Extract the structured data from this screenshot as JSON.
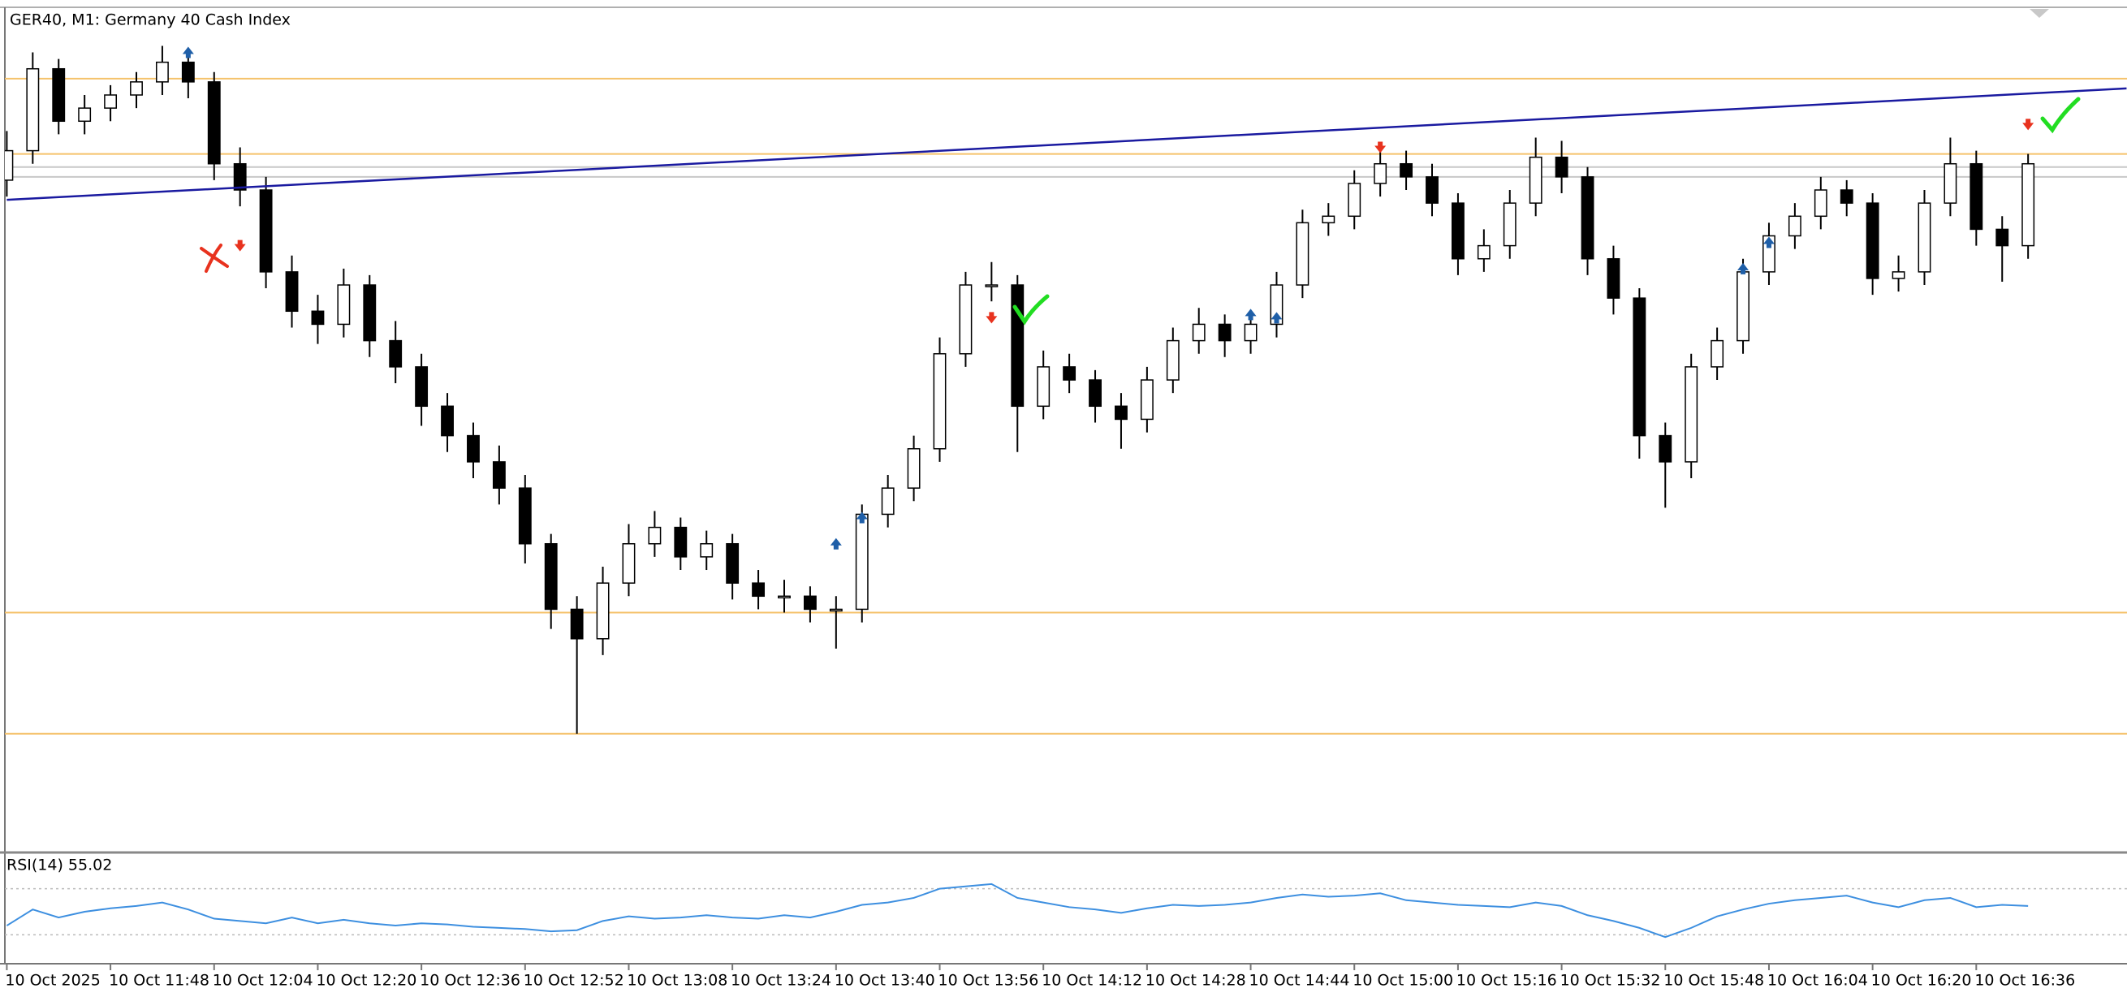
{
  "chart_data": {
    "type": "candlestick",
    "title": "GER40, M1:  Germany 40 Cash Index",
    "categories": [
      "10 Oct 2025",
      null,
      null,
      null,
      "10 Oct 11:48",
      null,
      null,
      null,
      "10 Oct 12:04",
      null,
      null,
      null,
      "10 Oct 12:20",
      null,
      null,
      null,
      "10 Oct 12:36",
      null,
      null,
      null,
      "10 Oct 12:52",
      null,
      null,
      null,
      "10 Oct 13:08",
      null,
      null,
      null,
      "10 Oct 13:24",
      null,
      null,
      null,
      "10 Oct 13:40",
      null,
      null,
      null,
      "10 Oct 13:56",
      null,
      null,
      null,
      "10 Oct 14:12",
      null,
      null,
      null,
      "10 Oct 14:28",
      null,
      null,
      null,
      "10 Oct 14:44",
      null,
      null,
      null,
      "10 Oct 15:00",
      null,
      null,
      null,
      "10 Oct 15:16",
      null,
      null,
      null,
      "10 Oct 15:32",
      null,
      null,
      null,
      "10 Oct 15:48",
      null,
      null,
      null,
      "10 Oct 16:04",
      null,
      null,
      null,
      "10 Oct 16:20",
      null,
      null,
      null,
      "10 Oct 16:36",
      null,
      null
    ],
    "open": [
      24505,
      24514,
      24539,
      24523,
      24527,
      24531,
      24535,
      24541,
      24535,
      24510,
      24502,
      24477,
      24465,
      24461,
      24473,
      24456,
      24448,
      24436,
      24427,
      24419,
      24411,
      24394,
      24374,
      24365,
      24382,
      24394,
      24399,
      24390,
      24394,
      24382,
      24378,
      24378,
      24374,
      24374,
      24403,
      24411,
      24423,
      24452,
      24473,
      24473,
      24436,
      24448,
      24444,
      24436,
      24432,
      24444,
      24456,
      24461,
      24456,
      24461,
      24473,
      24492,
      24494,
      24504,
      24510,
      24506,
      24498,
      24481,
      24485,
      24498,
      24512,
      24506,
      24481,
      24469,
      24427,
      24419,
      24448,
      24456,
      24477,
      24488,
      24494,
      24502,
      24498,
      24475,
      24477,
      24498,
      24510,
      24490,
      24485
    ],
    "high": [
      24520,
      24544,
      24542,
      24531,
      24534,
      24538,
      24546,
      24544,
      24538,
      24515,
      24506,
      24482,
      24470,
      24478,
      24476,
      24462,
      24452,
      24440,
      24431,
      24424,
      24415,
      24397,
      24378,
      24387,
      24400,
      24404,
      24402,
      24398,
      24397,
      24386,
      24383,
      24381,
      24378,
      24406,
      24415,
      24427,
      24457,
      24477,
      24480,
      24476,
      24453,
      24452,
      24447,
      24440,
      24448,
      24460,
      24466,
      24464,
      24465,
      24477,
      24496,
      24498,
      24508,
      24515,
      24514,
      24510,
      24501,
      24490,
      24502,
      24518,
      24517,
      24509,
      24485,
      24472,
      24431,
      24452,
      24460,
      24481,
      24492,
      24498,
      24506,
      24505,
      24501,
      24482,
      24502,
      24518,
      24514,
      24494,
      24513
    ],
    "low": [
      24500,
      24510,
      24519,
      24519,
      24523,
      24527,
      24531,
      24530,
      24505,
      24497,
      24472,
      24460,
      24455,
      24457,
      24451,
      24443,
      24430,
      24422,
      24414,
      24406,
      24388,
      24368,
      24336,
      24360,
      24378,
      24390,
      24386,
      24386,
      24377,
      24374,
      24373,
      24370,
      24362,
      24370,
      24399,
      24407,
      24419,
      24448,
      24468,
      24422,
      24432,
      24440,
      24431,
      24423,
      24428,
      24440,
      24452,
      24451,
      24452,
      24457,
      24469,
      24488,
      24490,
      24500,
      24502,
      24494,
      24476,
      24477,
      24481,
      24494,
      24501,
      24476,
      24464,
      24420,
      24405,
      24414,
      24444,
      24452,
      24473,
      24484,
      24490,
      24494,
      24470,
      24471,
      24473,
      24494,
      24485,
      24474,
      24481
    ],
    "close": [
      24514,
      24539,
      24523,
      24527,
      24531,
      24535,
      24541,
      24535,
      24510,
      24502,
      24477,
      24465,
      24461,
      24473,
      24456,
      24448,
      24436,
      24427,
      24419,
      24411,
      24394,
      24374,
      24365,
      24382,
      24394,
      24399,
      24390,
      24394,
      24382,
      24378,
      24378,
      24374,
      24374,
      24403,
      24411,
      24423,
      24452,
      24473,
      24473,
      24436,
      24448,
      24444,
      24436,
      24432,
      24444,
      24456,
      24461,
      24456,
      24461,
      24473,
      24492,
      24494,
      24504,
      24510,
      24506,
      24498,
      24481,
      24485,
      24498,
      24512,
      24506,
      24481,
      24469,
      24427,
      24419,
      24448,
      24456,
      24477,
      24488,
      24494,
      24502,
      24498,
      24475,
      24477,
      24498,
      24510,
      24490,
      24485,
      24510
    ],
    "up_color": "#ffffff",
    "down_color": "#000000",
    "ylim": [
      24300,
      24560
    ],
    "levels": [
      {
        "value": 24536,
        "color": "#f5c26b"
      },
      {
        "value": 24513,
        "color": "#f5c26b"
      },
      {
        "value": 24509,
        "color": "#c8c8c8"
      },
      {
        "value": 24506,
        "color": "#c8c8c8"
      },
      {
        "value": 24373,
        "color": "#f5c26b"
      },
      {
        "value": 24336,
        "color": "#f5c26b"
      }
    ],
    "trendline": {
      "x": [
        0,
        81.8
      ],
      "y": [
        24499,
        24533
      ],
      "color": "#1a1aa0"
    },
    "buy_markers": {
      "color": "#1f5fa8",
      "x": [
        7,
        32,
        33,
        48,
        49,
        67,
        68
      ],
      "y": [
        24544,
        24394,
        24402,
        24464,
        24463,
        24478,
        24486
      ]
    },
    "sell_markers": {
      "color": "#e8321e",
      "x": [
        9,
        38,
        53,
        78
      ],
      "y": [
        24485,
        24463,
        24515,
        24522
      ]
    },
    "rsi": {
      "title": "RSI(14) 55.02",
      "color": "#3d8fe0",
      "ylim": [
        0,
        100
      ],
      "levels": [
        70,
        30
      ],
      "values": [
        38,
        52,
        45,
        50,
        53,
        55,
        58,
        52,
        44,
        42,
        40,
        45,
        40,
        43,
        40,
        38,
        40,
        39,
        37,
        36,
        35,
        33,
        34,
        42,
        46,
        44,
        45,
        47,
        45,
        44,
        47,
        45,
        50,
        56,
        58,
        62,
        70,
        72,
        74,
        62,
        58,
        54,
        52,
        49,
        53,
        56,
        55,
        56,
        58,
        62,
        65,
        63,
        64,
        66,
        60,
        58,
        56,
        55,
        54,
        58,
        55,
        47,
        42,
        36,
        28,
        36,
        46,
        52,
        57,
        60,
        62,
        64,
        58,
        54,
        60,
        62,
        54,
        56,
        55
      ]
    }
  }
}
